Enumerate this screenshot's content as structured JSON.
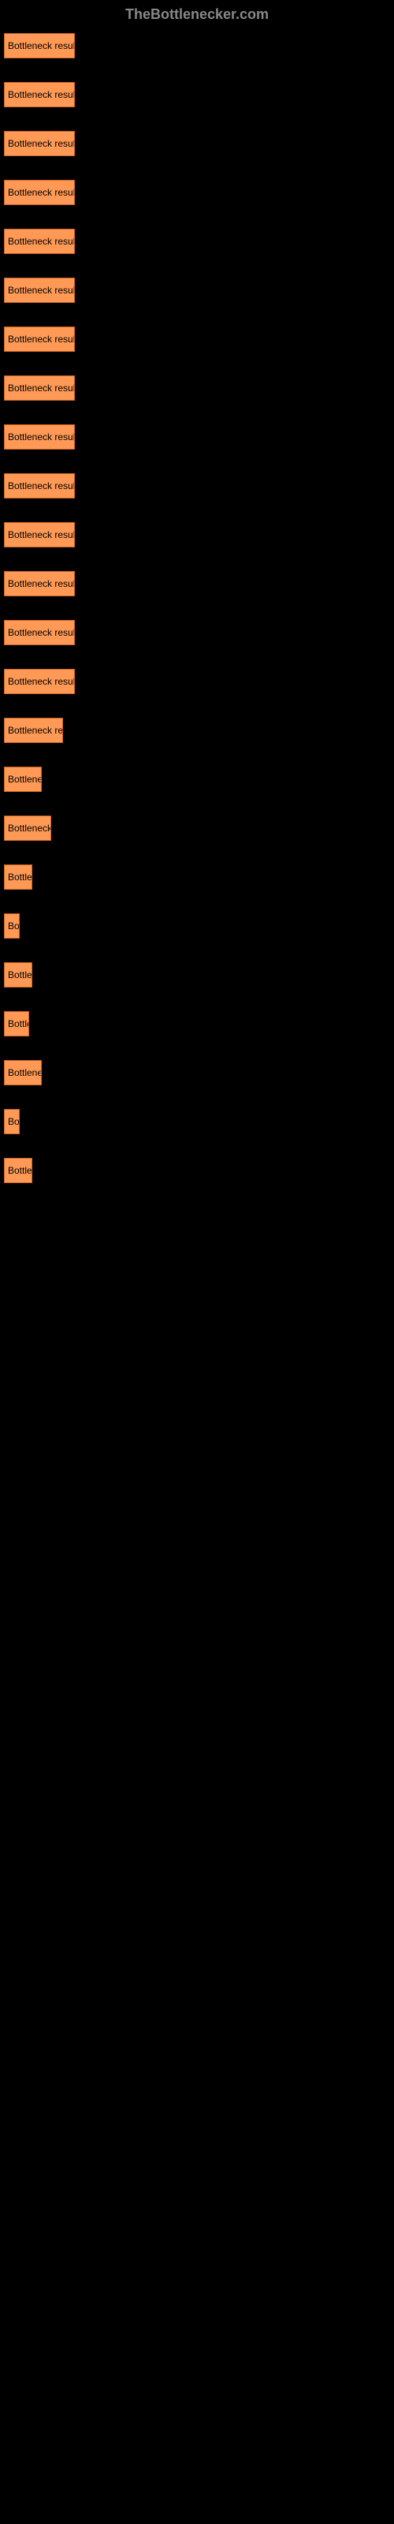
{
  "header": {
    "title": "TheBottlenecker.com"
  },
  "chart": {
    "type": "bar",
    "bar_color": "#ff9955",
    "bar_border_color": "#cc6622",
    "background_color": "#000000",
    "text_color": "#000000",
    "bar_label": "Bottleneck result",
    "bars": [
      {
        "width": 90,
        "label": "Bottleneck result"
      },
      {
        "width": 90,
        "label": "Bottleneck result"
      },
      {
        "width": 90,
        "label": "Bottleneck result"
      },
      {
        "width": 90,
        "label": "Bottleneck result"
      },
      {
        "width": 90,
        "label": "Bottleneck result"
      },
      {
        "width": 90,
        "label": "Bottleneck result"
      },
      {
        "width": 90,
        "label": "Bottleneck result"
      },
      {
        "width": 90,
        "label": "Bottleneck result"
      },
      {
        "width": 90,
        "label": "Bottleneck result"
      },
      {
        "width": 90,
        "label": "Bottleneck result"
      },
      {
        "width": 90,
        "label": "Bottleneck result"
      },
      {
        "width": 90,
        "label": "Bottleneck result"
      },
      {
        "width": 90,
        "label": "Bottleneck result"
      },
      {
        "width": 90,
        "label": "Bottleneck result"
      },
      {
        "width": 75,
        "label": "Bottleneck re"
      },
      {
        "width": 48,
        "label": "Bottlene"
      },
      {
        "width": 60,
        "label": "Bottleneck r"
      },
      {
        "width": 36,
        "label": "Bottlen"
      },
      {
        "width": 20,
        "label": "Bo"
      },
      {
        "width": 36,
        "label": "Bottlen"
      },
      {
        "width": 32,
        "label": "Bottle"
      },
      {
        "width": 48,
        "label": "Bottlenec"
      },
      {
        "width": 20,
        "label": "Bo"
      },
      {
        "width": 36,
        "label": "Bottlen"
      }
    ]
  }
}
